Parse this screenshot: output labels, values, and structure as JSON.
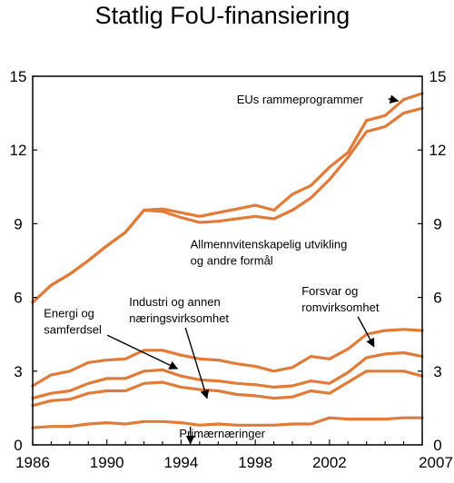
{
  "chart_data": {
    "type": "area",
    "title": "Statlig FoU-finansiering",
    "xlabel": "",
    "ylabel": "",
    "xlim": [
      1986,
      2007
    ],
    "ylim": [
      0,
      15
    ],
    "x_ticks": [
      1986,
      1990,
      1994,
      1998,
      2002,
      2007
    ],
    "x_tick_labels": [
      "1986",
      "1990",
      "1994",
      "1998",
      "2002",
      "2007"
    ],
    "y_ticks": [
      0,
      3,
      6,
      9,
      12,
      15
    ],
    "y_tick_labels": [
      "0",
      "3",
      "6",
      "9",
      "12",
      "15"
    ],
    "grid": false,
    "stacked": true,
    "x": [
      1986,
      1987,
      1988,
      1989,
      1990,
      1991,
      1992,
      1993,
      1994,
      1995,
      1996,
      1997,
      1998,
      1999,
      2000,
      2001,
      2002,
      2003,
      2004,
      2005,
      2006,
      2007
    ],
    "boundaries": [
      {
        "values": [
          0.7,
          0.75,
          0.75,
          0.85,
          0.9,
          0.85,
          0.95,
          0.95,
          0.9,
          0.8,
          0.85,
          0.8,
          0.8,
          0.8,
          0.85,
          0.85,
          1.1,
          1.05,
          1.05,
          1.05,
          1.1,
          1.1
        ]
      },
      {
        "values": [
          1.6,
          1.8,
          1.85,
          2.1,
          2.2,
          2.2,
          2.5,
          2.55,
          2.35,
          2.25,
          2.2,
          2.05,
          2.0,
          1.9,
          1.95,
          2.2,
          2.1,
          2.55,
          3.0,
          3.0,
          3.0,
          2.8
        ]
      },
      {
        "values": [
          1.9,
          2.1,
          2.2,
          2.5,
          2.7,
          2.7,
          3.0,
          3.05,
          2.8,
          2.65,
          2.6,
          2.5,
          2.45,
          2.35,
          2.4,
          2.6,
          2.5,
          2.95,
          3.55,
          3.7,
          3.75,
          3.6
        ]
      },
      {
        "values": [
          2.4,
          2.85,
          3.0,
          3.35,
          3.45,
          3.5,
          3.85,
          3.85,
          3.65,
          3.5,
          3.45,
          3.3,
          3.2,
          3.0,
          3.15,
          3.6,
          3.5,
          3.9,
          4.5,
          4.65,
          4.7,
          4.65
        ]
      },
      {
        "values": [
          5.8,
          6.5,
          6.95,
          7.5,
          8.1,
          8.65,
          9.55,
          9.5,
          9.25,
          9.05,
          9.1,
          9.2,
          9.3,
          9.2,
          9.55,
          10.05,
          10.8,
          11.7,
          12.75,
          12.95,
          13.5,
          13.7
        ]
      },
      {
        "values": [
          5.8,
          6.5,
          6.95,
          7.5,
          8.1,
          8.65,
          9.55,
          9.6,
          9.45,
          9.3,
          9.45,
          9.6,
          9.75,
          9.55,
          10.2,
          10.55,
          11.3,
          11.9,
          13.2,
          13.4,
          14.05,
          14.3
        ]
      }
    ],
    "annotations": [
      {
        "text": "EUs rammeprogrammer",
        "x": 1997,
        "y": 13.9,
        "arrow_to": {
          "x": 2005.7,
          "y": 14.0
        }
      },
      {
        "lines": [
          "Allmennvitenskapelig utvikling",
          "og andre formål"
        ],
        "x": 1994.5,
        "y": 8.0
      },
      {
        "lines": [
          "Forsvar og",
          "romvirksomhet"
        ],
        "x": 2000.5,
        "y": 6.1,
        "arrow_to": {
          "x": 2004.4,
          "y": 4.0
        }
      },
      {
        "lines": [
          "Industri og annen",
          "næringsvirksomhet"
        ],
        "x": 1991.2,
        "y": 5.65,
        "arrow_to": {
          "x": 1995.4,
          "y": 1.9
        }
      },
      {
        "lines": [
          "Energi og",
          "samferdsel"
        ],
        "x": 1986.6,
        "y": 5.2,
        "arrow_to": {
          "x": 1993.8,
          "y": 3.1
        }
      },
      {
        "text": "Primærnæringer",
        "x": 1993.9,
        "y": 0.3,
        "arrow_to": {
          "x": 1994.5,
          "y": 0.05
        }
      }
    ]
  },
  "colors": {
    "series_line": "#e07b39",
    "axes": "#000000",
    "arrow": "#000000",
    "background": "#ffffff"
  }
}
